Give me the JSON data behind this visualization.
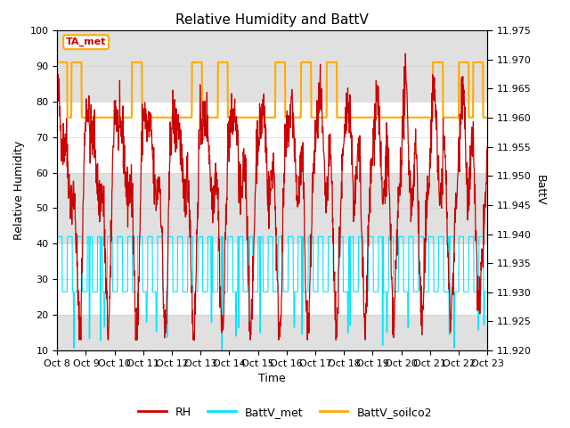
{
  "title": "Relative Humidity and BattV",
  "xlabel": "Time",
  "ylabel_left": "Relative Humidity",
  "ylabel_right": "BattV",
  "ylim_left": [
    10,
    100
  ],
  "ylim_right": [
    11.92,
    11.975
  ],
  "yticks_left": [
    10,
    20,
    30,
    40,
    50,
    60,
    70,
    80,
    90,
    100
  ],
  "yticks_right": [
    11.92,
    11.925,
    11.93,
    11.935,
    11.94,
    11.945,
    11.95,
    11.955,
    11.96,
    11.965,
    11.97,
    11.975
  ],
  "xtick_labels": [
    "Oct 8",
    "Oct 9",
    "Oct 10",
    "Oct 11",
    "Oct 12",
    "Oct 13",
    "Oct 14",
    "Oct 15",
    "Oct 16",
    "Oct 17",
    "Oct 18",
    "Oct 19",
    "Oct 20",
    "Oct 21",
    "Oct 22",
    "Oct 23"
  ],
  "rh_color": "#cc0000",
  "battv_met_color": "#00e5ff",
  "battv_soilco2_color": "#ffaa00",
  "legend_rh_label": "RH",
  "legend_battv_met_label": "BattV_met",
  "legend_battv_soilco2_label": "BattV_soilco2",
  "annotation_text": "TA_met",
  "annotation_box_facecolor": "white",
  "annotation_box_edgecolor": "#ffaa00",
  "annotation_text_color": "#cc0000",
  "bg_band_color": "#e0e0e0",
  "title_fontsize": 11,
  "axis_label_fontsize": 9,
  "tick_fontsize": 8,
  "legend_fontsize": 9,
  "fig_width": 6.4,
  "fig_height": 4.8,
  "dpi": 100
}
